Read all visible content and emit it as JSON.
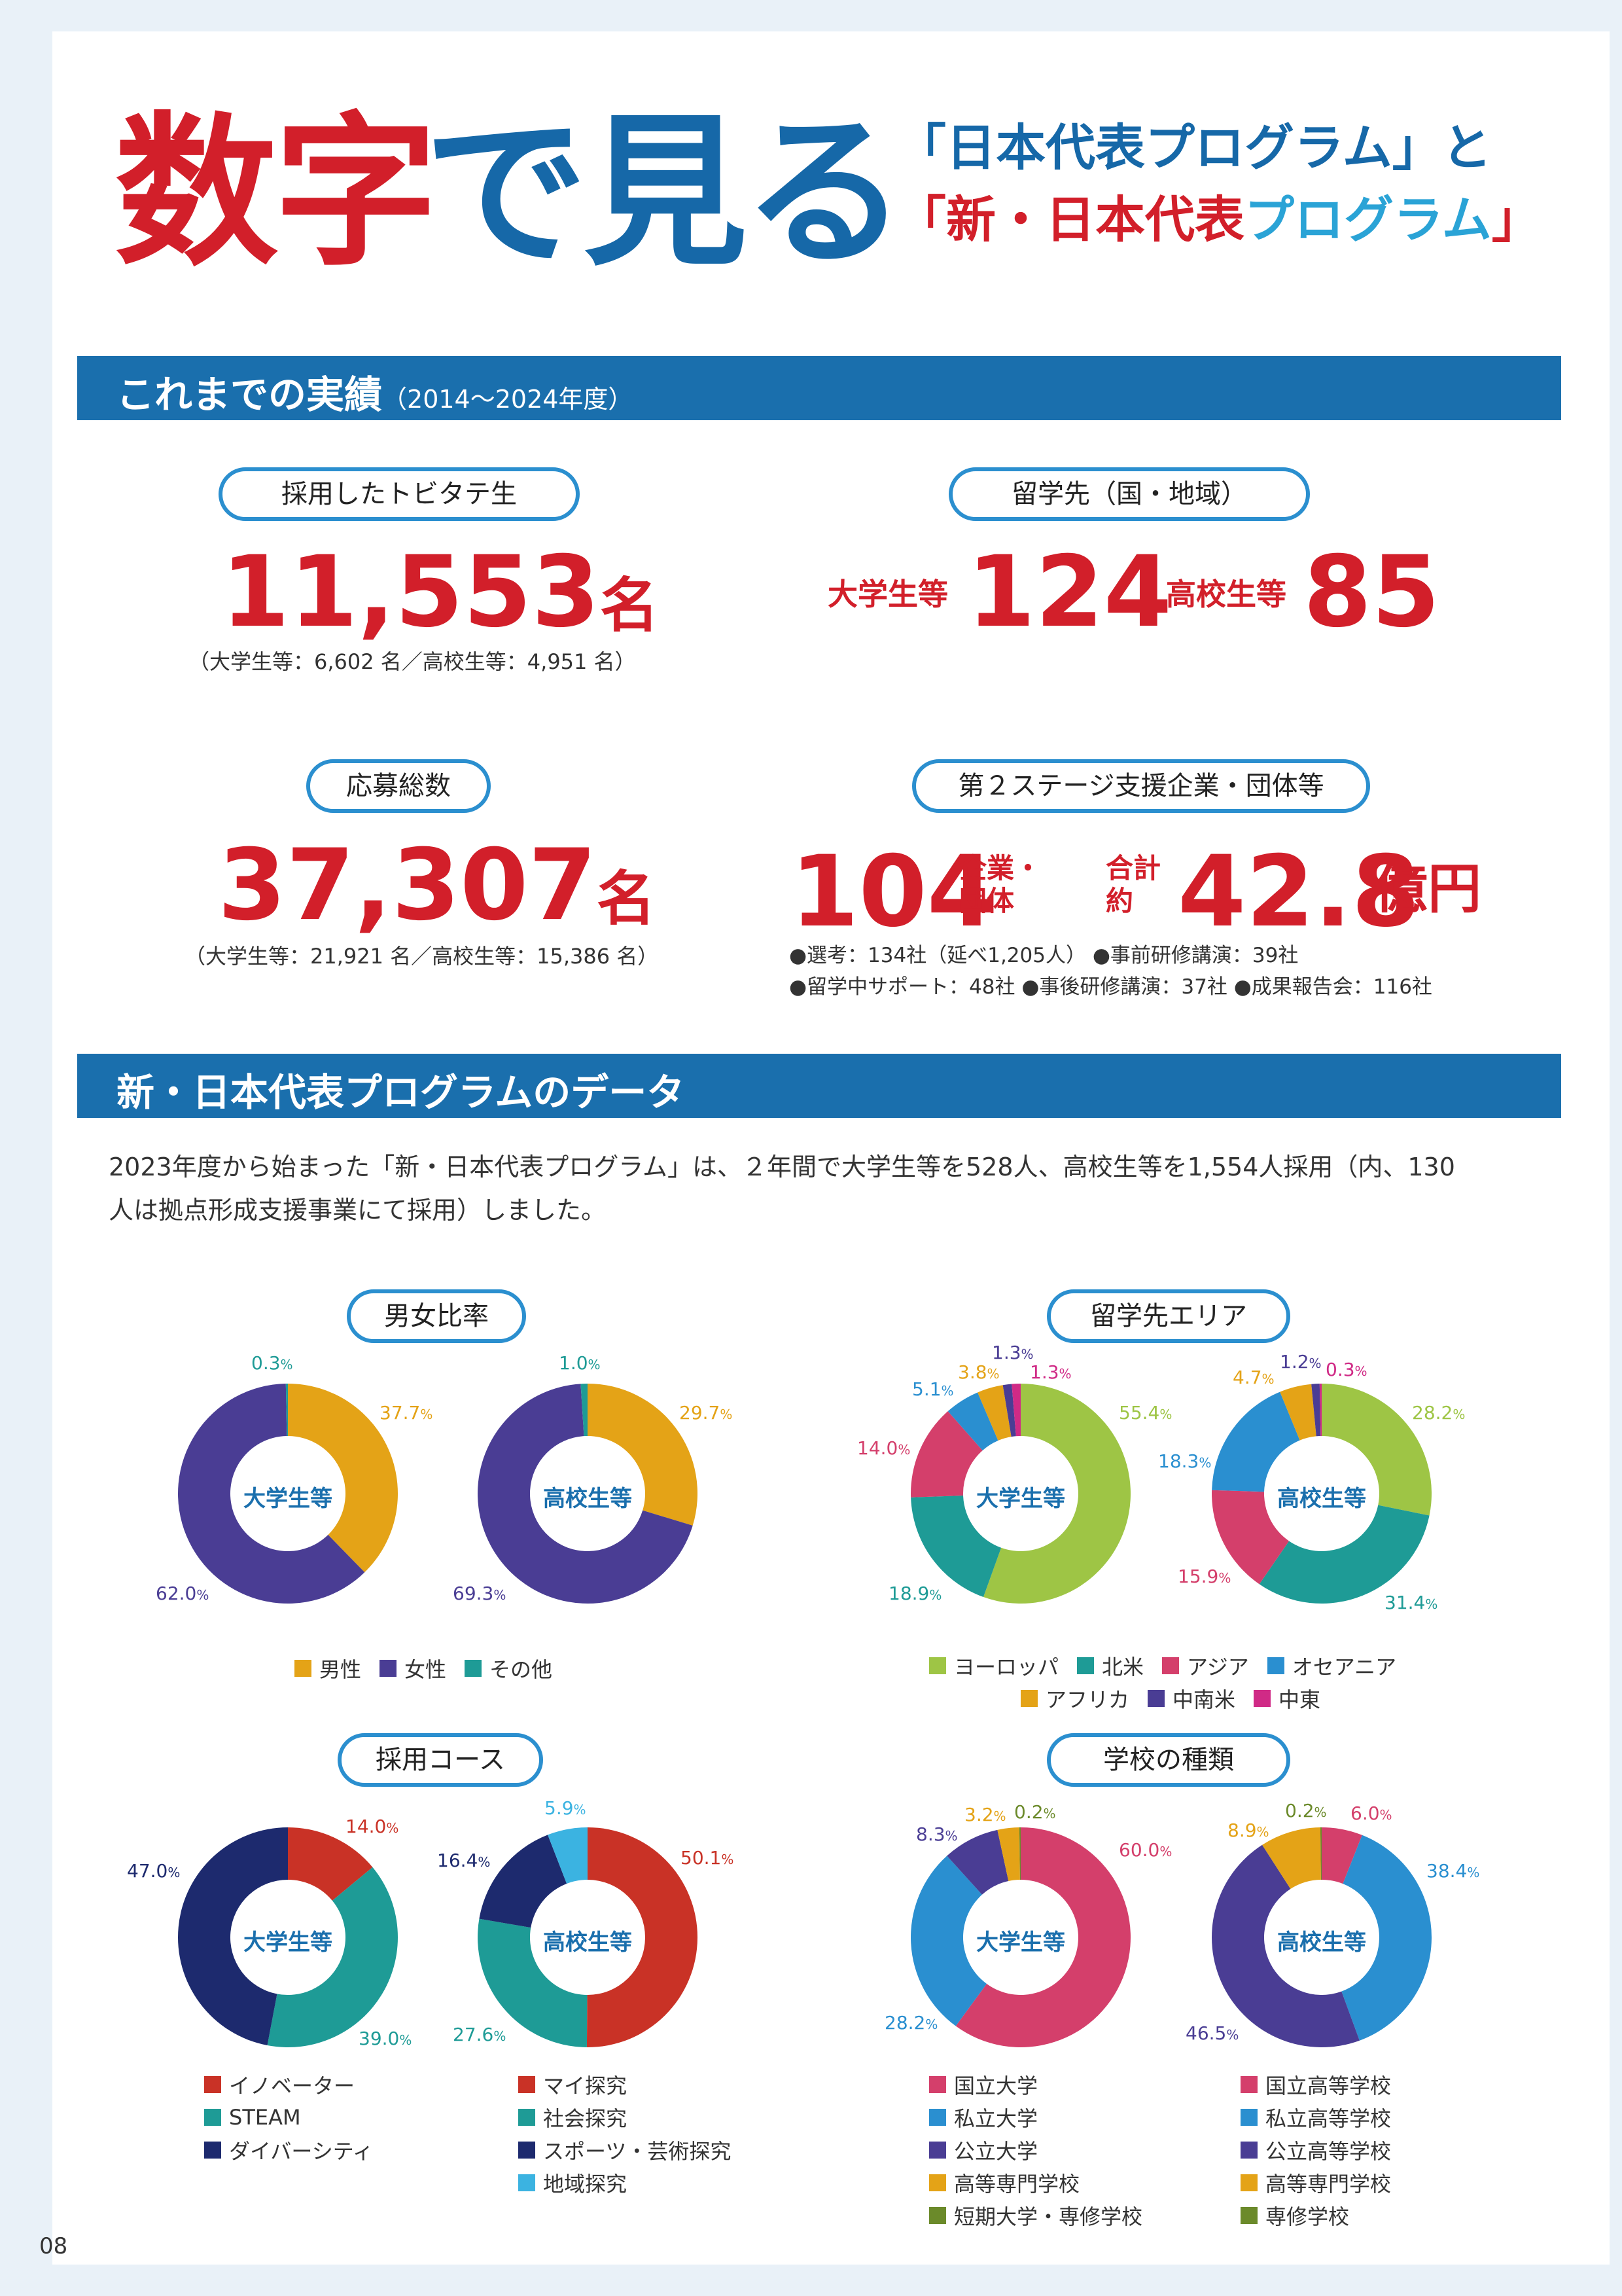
{
  "title": {
    "part1": "数字",
    "part2": "で見る",
    "line1": "「日本代表プログラム」と",
    "line2_a": "「新・日本代表",
    "line2_b": "プログラム",
    "line2_c": "」"
  },
  "section1": {
    "title": "これまでの実績",
    "period": "（2014～2024年度）",
    "hired": {
      "pill": "採用したトビタテ生",
      "number": "11,553",
      "unit": "名",
      "note": "（大学生等：6,602 名／高校生等：4,951 名）"
    },
    "destinations": {
      "pill": "留学先（国・地域）",
      "univ_label": "大学生等",
      "univ_value": "124",
      "hs_label": "高校生等",
      "hs_value": "85"
    },
    "applicants": {
      "pill": "応募総数",
      "number": "37,307",
      "unit": "名",
      "note": "（大学生等：21,921 名／高校生等：15,386 名）"
    },
    "supporters": {
      "pill": "第２ステージ支援企業・団体等",
      "number": "104",
      "unit_line1": "企業・",
      "unit_line2": "団体",
      "total_line1": "合計",
      "total_line2": "約",
      "total_value": "42.8",
      "total_unit": "億円",
      "detail_line1": "●選考：134社（延べ1,205人） ●事前研修講演：39社",
      "detail_line2": "●留学中サポート：48社 ●事後研修講演：37社 ●成果報告会：116社"
    }
  },
  "section2": {
    "title": "新・日本代表プログラムのデータ",
    "intro_line1": "2023年度から始まった「新・日本代表プログラム」は、２年間で大学生等を528人、高校生等を1,554人採用（内、130",
    "intro_line2": "人は拠点形成支援事業にて採用）しました。"
  },
  "chart_data": [
    {
      "type": "pie",
      "title": "男女比率",
      "center_label": "大学生等",
      "categories": [
        "男性",
        "女性",
        "その他"
      ],
      "values": [
        37.7,
        62.0,
        0.3
      ],
      "colors": [
        "#e4a317",
        "#4a3d94",
        "#1e9b96"
      ]
    },
    {
      "type": "pie",
      "title": "男女比率",
      "center_label": "高校生等",
      "categories": [
        "男性",
        "女性",
        "その他"
      ],
      "values": [
        29.7,
        69.3,
        1.0
      ],
      "colors": [
        "#e4a317",
        "#4a3d94",
        "#1e9b96"
      ]
    },
    {
      "type": "pie",
      "title": "留学先エリア",
      "center_label": "大学生等",
      "categories": [
        "ヨーロッパ",
        "北米",
        "アジア",
        "オセアニア",
        "アフリカ",
        "中南米",
        "中東"
      ],
      "values": [
        55.4,
        18.9,
        14.0,
        5.1,
        3.8,
        1.3,
        1.3
      ],
      "colors": [
        "#9ec545",
        "#1e9b96",
        "#d43f6b",
        "#2a8fd0",
        "#e4a317",
        "#4a3d94",
        "#d02a86"
      ]
    },
    {
      "type": "pie",
      "title": "留学先エリア",
      "center_label": "高校生等",
      "categories": [
        "ヨーロッパ",
        "北米",
        "アジア",
        "オセアニア",
        "アフリカ",
        "中南米",
        "中東"
      ],
      "values": [
        28.2,
        31.4,
        15.9,
        18.3,
        4.7,
        1.2,
        0.3
      ],
      "colors": [
        "#9ec545",
        "#1e9b96",
        "#d43f6b",
        "#2a8fd0",
        "#e4a317",
        "#4a3d94",
        "#d02a86"
      ]
    },
    {
      "type": "pie",
      "title": "採用コース",
      "center_label": "大学生等",
      "categories": [
        "イノベーター",
        "STEAM",
        "ダイバーシティ"
      ],
      "values": [
        14.0,
        39.0,
        47.0
      ],
      "colors": [
        "#c93226",
        "#1e9b96",
        "#1d2a6e"
      ]
    },
    {
      "type": "pie",
      "title": "採用コース",
      "center_label": "高校生等",
      "categories": [
        "マイ探究",
        "社会探究",
        "スポーツ・芸術探究",
        "地域探究"
      ],
      "values": [
        50.1,
        27.6,
        16.4,
        5.9
      ],
      "colors": [
        "#c93226",
        "#1e9b96",
        "#1d2a6e",
        "#3bb3e1"
      ]
    },
    {
      "type": "pie",
      "title": "学校の種類",
      "center_label": "大学生等",
      "categories": [
        "国立大学",
        "私立大学",
        "公立大学",
        "高等専門学校",
        "短期大学・専修学校"
      ],
      "values": [
        60.0,
        28.2,
        8.3,
        3.2,
        0.2
      ],
      "colors": [
        "#d43f6b",
        "#2a8fd0",
        "#4a3d94",
        "#e4a317",
        "#6b8a2a"
      ]
    },
    {
      "type": "pie",
      "title": "学校の種類",
      "center_label": "高校生等",
      "categories": [
        "国立高等学校",
        "私立高等学校",
        "公立高等学校",
        "高等専門学校",
        "専修学校"
      ],
      "values": [
        6.0,
        38.4,
        46.5,
        8.9,
        0.2
      ],
      "colors": [
        "#d43f6b",
        "#2a8fd0",
        "#4a3d94",
        "#e4a317",
        "#6b8a2a"
      ]
    }
  ],
  "legends": {
    "gender": [
      "男性",
      "女性",
      "その他"
    ],
    "area_row1": [
      "ヨーロッパ",
      "北米",
      "アジア",
      "オセアニア"
    ],
    "area_row2": [
      "アフリカ",
      "中南米",
      "中東"
    ],
    "course_univ": [
      "イノベーター",
      "STEAM",
      "ダイバーシティ"
    ],
    "course_hs": [
      "マイ探究",
      "社会探究",
      "スポーツ・芸術探究",
      "地域探究"
    ],
    "school_univ": [
      "国立大学",
      "私立大学",
      "公立大学",
      "高等専門学校",
      "短期大学・専修学校"
    ],
    "school_hs": [
      "国立高等学校",
      "私立高等学校",
      "公立高等学校",
      "高等専門学校",
      "専修学校"
    ]
  },
  "pct_unit": "%",
  "page_number": "08"
}
